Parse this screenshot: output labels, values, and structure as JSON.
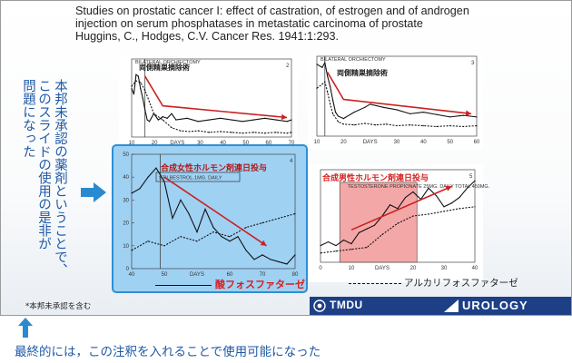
{
  "slide": {
    "title_lines": [
      "Studies on prostatic cancer I: effect of castration, of estrogen and of androgen",
      "injection on serum phosphatases in metastatic carcinoma of prostate",
      "Huggins, C., Hodges, C.V.  Cancer Res. 1941:1:293."
    ],
    "side_note_lines": [
      "本邦未承認の薬剤ということで、",
      "このスライドの使用の是非が",
      "問題になった"
    ],
    "footnote": "*本邦未承認を含む",
    "legend_acid": "酸フォスファターゼ",
    "legend_alkaline": "アルカリフォスファターゼ",
    "logo_left": "TMDU",
    "logo_right": "UROLOGY",
    "accent_blue": "#1f5aa6",
    "accent_red": "#d62020"
  },
  "bottom_caption": "最終的には，この注釈を入れることで使用可能になった",
  "chart_data": [
    {
      "type": "line",
      "figure_number": "2",
      "annotation_jp": "両側精巣摘除術",
      "annotation_en": "BILATERAL ORCHIECTOMY",
      "x_ticks": [
        "10",
        "20",
        "DAYS",
        "30",
        "40",
        "50",
        "60",
        "70"
      ],
      "series": [
        {
          "style": "solid",
          "x": [
            0,
            1,
            2,
            3,
            4,
            5,
            6,
            7,
            8,
            9,
            10,
            12,
            14,
            16,
            18,
            20,
            25,
            30,
            35,
            40,
            45,
            50,
            55,
            60,
            65,
            70,
            72
          ],
          "y": [
            0.62,
            0.55,
            0.8,
            0.78,
            0.62,
            0.5,
            0.35,
            0.22,
            0.2,
            0.25,
            0.3,
            0.22,
            0.26,
            0.24,
            0.3,
            0.22,
            0.24,
            0.2,
            0.22,
            0.24,
            0.22,
            0.2,
            0.22,
            0.24,
            0.22,
            0.2,
            0.22
          ]
        },
        {
          "style": "dashed",
          "x": [
            0,
            2,
            4,
            6,
            8,
            10,
            14,
            18,
            22,
            26,
            30,
            35,
            40,
            45,
            50,
            55,
            60,
            65,
            70,
            72
          ],
          "y": [
            0.65,
            0.72,
            0.7,
            0.6,
            0.45,
            0.3,
            0.22,
            0.12,
            0.08,
            0.07,
            0.08,
            0.06,
            0.07,
            0.06,
            0.05,
            0.06,
            0.05,
            0.06,
            0.05,
            0.06
          ]
        }
      ]
    },
    {
      "type": "line",
      "figure_number": "3",
      "annotation_jp": "両側精巣摘除術",
      "annotation_en": "BILATERAL ORCHIECTOMY",
      "x_ticks": [
        "10",
        "20",
        "DAYS",
        "30",
        "40",
        "50",
        "60"
      ],
      "series": [
        {
          "style": "solid",
          "x": [
            0,
            2,
            3,
            4,
            5,
            6,
            7,
            8,
            10,
            14,
            18,
            20,
            25,
            30,
            35,
            40,
            45,
            50,
            55,
            60
          ],
          "y": [
            0.9,
            0.86,
            0.92,
            0.75,
            0.62,
            0.45,
            0.3,
            0.25,
            0.22,
            0.3,
            0.36,
            0.4,
            0.36,
            0.33,
            0.28,
            0.3,
            0.27,
            0.24,
            0.26,
            0.24
          ]
        },
        {
          "style": "dashed",
          "x": [
            0,
            2,
            3,
            4,
            5,
            6,
            8,
            10,
            14,
            18,
            22,
            26,
            30,
            35,
            40,
            45,
            50,
            55,
            60
          ],
          "y": [
            0.6,
            0.65,
            0.68,
            0.55,
            0.4,
            0.28,
            0.18,
            0.15,
            0.14,
            0.16,
            0.14,
            0.15,
            0.13,
            0.14,
            0.13,
            0.12,
            0.13,
            0.12,
            0.13
          ]
        }
      ]
    },
    {
      "type": "line",
      "figure_number": "4",
      "annotation_jp": "合成女性ホルモン剤連日投与",
      "annotation_en": "STILBESTROL-1MG. DAILY",
      "x_ticks": [
        "40",
        "50",
        "DAYS",
        "60",
        "70",
        "80"
      ],
      "y_ticks": [
        "50",
        "40",
        "30",
        "20",
        "10",
        "0"
      ],
      "series": [
        {
          "style": "solid",
          "x": [
            40,
            42,
            44,
            46,
            48,
            50,
            52,
            54,
            56,
            58,
            60,
            62,
            64,
            66,
            68,
            70,
            72,
            74,
            76,
            78,
            80
          ],
          "y": [
            33,
            35,
            40,
            44,
            38,
            22,
            30,
            24,
            16,
            26,
            18,
            14,
            12,
            14,
            8,
            4,
            6,
            4,
            3,
            2,
            6
          ]
        },
        {
          "style": "dashed",
          "x": [
            40,
            44,
            48,
            52,
            56,
            60,
            64,
            68,
            72,
            76,
            80
          ],
          "y": [
            8,
            12,
            10,
            14,
            12,
            16,
            14,
            18,
            20,
            22,
            24
          ]
        }
      ]
    },
    {
      "type": "line",
      "figure_number": "5",
      "annotation_jp": "合成男性ホルモン剤連日投与",
      "annotation_en": "TESTOSTERONE PROPIONATE 25MG. DAILY TOTAL 450MG.",
      "x_ticks": [
        "0",
        "10",
        "DAYS",
        "20",
        "30",
        "40"
      ],
      "series": [
        {
          "style": "solid",
          "x": [
            0,
            2,
            4,
            6,
            8,
            10,
            12,
            14,
            16,
            18,
            20,
            22,
            24,
            26,
            28,
            30,
            32,
            34,
            36,
            38,
            40
          ],
          "y": [
            18,
            22,
            18,
            24,
            20,
            32,
            36,
            40,
            50,
            62,
            58,
            70,
            76,
            68,
            80,
            72,
            60,
            64,
            70,
            80,
            88
          ]
        },
        {
          "style": "dashed",
          "x": [
            0,
            4,
            8,
            12,
            16,
            20,
            24,
            28,
            32,
            36,
            40
          ],
          "y": [
            10,
            12,
            14,
            16,
            30,
            42,
            50,
            52,
            55,
            58,
            60
          ]
        }
      ]
    }
  ]
}
